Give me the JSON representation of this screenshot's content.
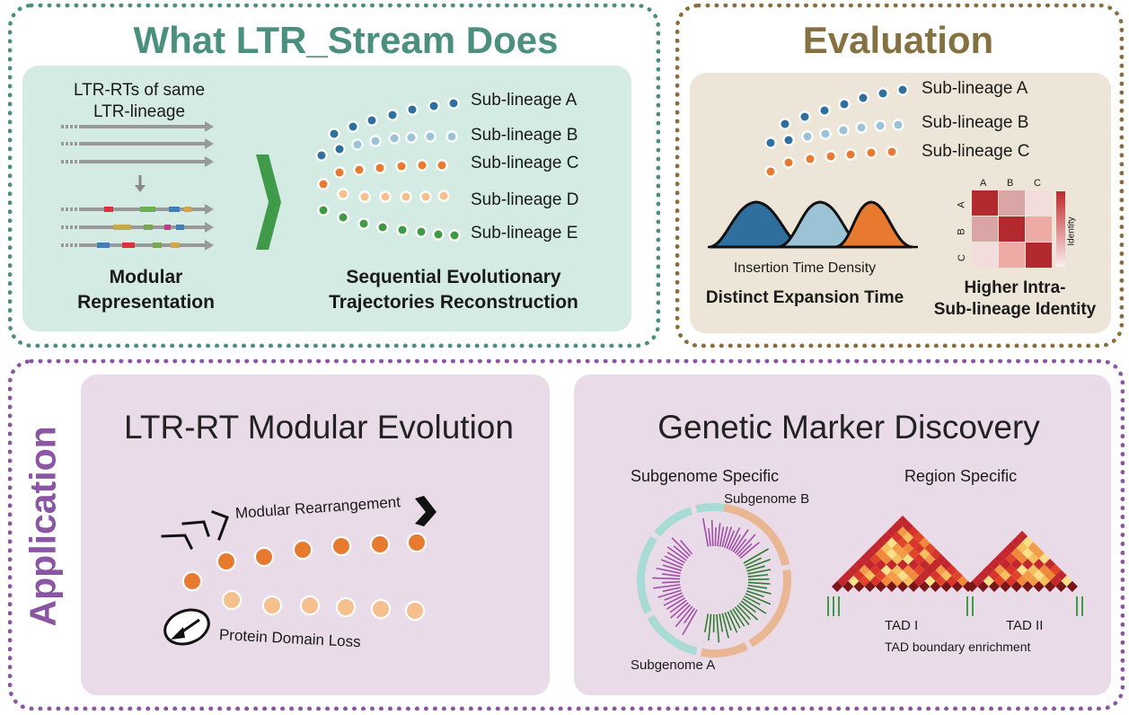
{
  "what": {
    "title": "What LTR_Stream Does",
    "ltr_caption_line1": "LTR-RTs of same",
    "ltr_caption_line2": "LTR-lineage",
    "modular_line1": "Modular",
    "modular_line2": "Representation",
    "sequential_line1": "Sequential Evolutionary",
    "sequential_line2": "Trajectories Reconstruction",
    "sublineages": [
      "Sub-lineage A",
      "Sub-lineage B",
      "Sub-lineage C",
      "Sub-lineage D",
      "Sub-lineage E"
    ]
  },
  "evaluation": {
    "title": "Evaluation",
    "sublineages": [
      "Sub-lineage A",
      "Sub-lineage B",
      "Sub-lineage C"
    ],
    "density_label": "Insertion Time Density",
    "expansion_label": "Distinct Expansion Time",
    "identity_line1": "Higher Intra-",
    "identity_line2": "Sub-lineage Identity",
    "heatmap_cols": [
      "A",
      "B",
      "C"
    ],
    "heatmap_rows": [
      "A",
      "B",
      "C"
    ],
    "colorbar_label": "Identity"
  },
  "application": {
    "side_label": "Application",
    "modular": {
      "title": "LTR-RT Modular Evolution",
      "rearrangement": "Modular Rearrangement",
      "domain_loss": "Protein Domain Loss"
    },
    "marker": {
      "title": "Genetic Marker Discovery",
      "subgenome_specific": "Subgenome Specific",
      "region_specific": "Region Specific",
      "subgenome_b": "Subgenome B",
      "subgenome_a": "Subgenome A",
      "tad1": "TAD I",
      "tad2": "TAD II",
      "tad_boundary": "TAD boundary enrichment"
    }
  },
  "colors": {
    "green_frame": "#4b8f7f",
    "green_panel": "#d3ebe2",
    "green_title": "#4b8f7f",
    "brown_frame": "#8a6d3b",
    "brown_panel": "#ede6d8",
    "brown_title": "#857040",
    "purple_frame": "#8a55a3",
    "purple_panel": "#eadbe8",
    "purple_title": "#8a55a3",
    "dark_blue": "#2e6f9e",
    "light_blue": "#9cc3d5",
    "orange": "#e87a30",
    "light_orange": "#f6c08e",
    "green_dot": "#3f9a44",
    "chevron_green": "#3f9a4a",
    "teal_ring": "#a9dbd6",
    "tan_ring": "#e9b794"
  }
}
